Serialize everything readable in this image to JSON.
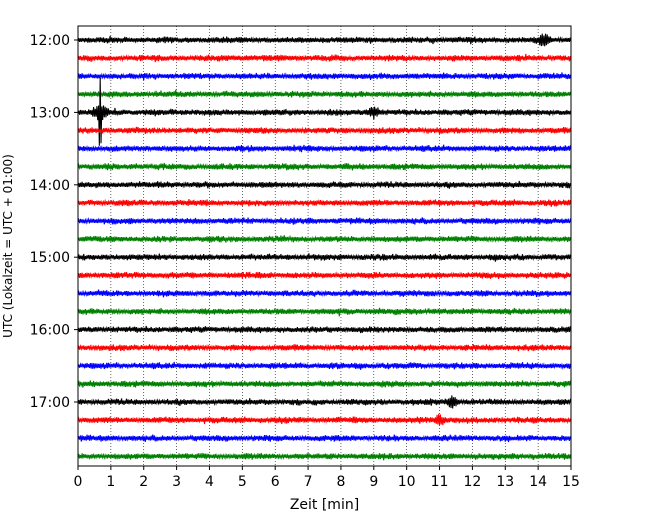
{
  "chart_data": {
    "type": "line",
    "xlabel": "Zeit  [min]",
    "ylabel": "UTC (Lokalzeit = UTC + 01:00)",
    "xlim": [
      0,
      15
    ],
    "x_ticks": [
      "0",
      "1",
      "2",
      "3",
      "4",
      "5",
      "6",
      "7",
      "8",
      "9",
      "10",
      "11",
      "12",
      "13",
      "14",
      "15"
    ],
    "y_tick_labels": [
      "12:00",
      "13:00",
      "14:00",
      "15:00",
      "16:00",
      "17:00"
    ],
    "grid": "vertical dotted at each minute",
    "trace_colors": [
      "#000000",
      "#ff0000",
      "#0000ff",
      "#008000"
    ],
    "traces": [
      {
        "start": "12:00",
        "color": "#000000"
      },
      {
        "start": "12:15",
        "color": "#ff0000"
      },
      {
        "start": "12:30",
        "color": "#0000ff"
      },
      {
        "start": "12:45",
        "color": "#008000"
      },
      {
        "start": "13:00",
        "color": "#000000"
      },
      {
        "start": "13:15",
        "color": "#ff0000"
      },
      {
        "start": "13:30",
        "color": "#0000ff"
      },
      {
        "start": "13:45",
        "color": "#008000"
      },
      {
        "start": "14:00",
        "color": "#000000"
      },
      {
        "start": "14:15",
        "color": "#ff0000"
      },
      {
        "start": "14:30",
        "color": "#0000ff"
      },
      {
        "start": "14:45",
        "color": "#008000"
      },
      {
        "start": "15:00",
        "color": "#000000"
      },
      {
        "start": "15:15",
        "color": "#ff0000"
      },
      {
        "start": "15:30",
        "color": "#0000ff"
      },
      {
        "start": "15:45",
        "color": "#008000"
      },
      {
        "start": "16:00",
        "color": "#000000"
      },
      {
        "start": "16:15",
        "color": "#ff0000"
      },
      {
        "start": "16:30",
        "color": "#0000ff"
      },
      {
        "start": "16:45",
        "color": "#008000"
      },
      {
        "start": "17:00",
        "color": "#000000"
      },
      {
        "start": "17:15",
        "color": "#ff0000"
      },
      {
        "start": "17:30",
        "color": "#0000ff"
      },
      {
        "start": "17:45",
        "color": "#008000"
      }
    ],
    "events": [
      {
        "trace_start": "13:00",
        "minute": 0.68,
        "note": "large spike"
      },
      {
        "trace_start": "13:00",
        "minute": 9.0
      },
      {
        "trace_start": "17:00",
        "minute": 11.4
      },
      {
        "trace_start": "17:15",
        "minute": 11.0
      },
      {
        "trace_start": "12:00",
        "minute": 14.2
      }
    ]
  }
}
